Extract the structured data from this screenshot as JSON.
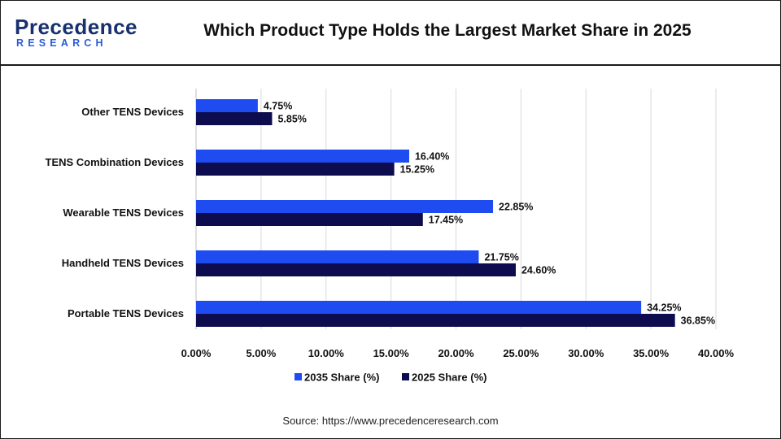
{
  "header": {
    "logo_main": "Precedence",
    "logo_sub": "RESEARCH",
    "title": "Which Product Type Holds the Largest Market Share in 2025"
  },
  "footer": {
    "source": "Source: https://www.precedenceresearch.com"
  },
  "colors": {
    "series_2035": "#1f4cf0",
    "series_2025": "#0c0c4f",
    "grid": "#d9d9d9",
    "logo_dark": "#17306e",
    "logo_accent": "#2a5bd7"
  },
  "chart_data": {
    "type": "bar",
    "orientation": "horizontal",
    "title": "Which Product Type Holds the Largest Market Share in 2025",
    "categories": [
      "Other TENS Devices",
      "TENS Combination Devices",
      "Wearable TENS Devices",
      "Handheld TENS Devices",
      "Portable TENS Devices"
    ],
    "series": [
      {
        "name": "2035 Share (%)",
        "values": [
          4.75,
          16.4,
          22.85,
          21.75,
          34.25
        ],
        "labels": [
          "4.75%",
          "16.40%",
          "22.85%",
          "21.75%",
          "34.25%"
        ]
      },
      {
        "name": "2025 Share (%)",
        "values": [
          5.85,
          15.25,
          17.45,
          24.6,
          36.85
        ],
        "labels": [
          "5.85%",
          "15.25%",
          "17.45%",
          "24.60%",
          "36.85%"
        ]
      }
    ],
    "xlim": [
      0,
      40
    ],
    "xticks": [
      "0.00%",
      "5.00%",
      "10.00%",
      "15.00%",
      "20.00%",
      "25.00%",
      "30.00%",
      "35.00%",
      "40.00%"
    ],
    "grid": true,
    "legend_position": "bottom"
  }
}
